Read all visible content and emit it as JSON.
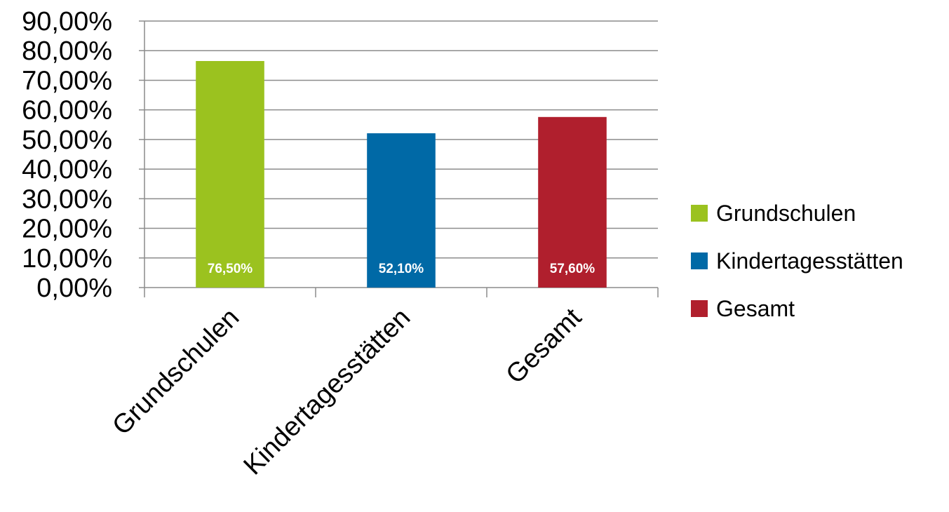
{
  "chart_data": {
    "type": "bar",
    "title": "",
    "xlabel": "",
    "ylabel": "",
    "categories": [
      "Grundschulen",
      "Kindertagesstätten",
      "Gesamt"
    ],
    "values": [
      76.5,
      52.1,
      57.6
    ],
    "data_labels": [
      "76,50%",
      "52,10%",
      "57,60%"
    ],
    "colors": [
      "#9BC21F",
      "#0069A6",
      "#B01F2D"
    ],
    "ylim": [
      0,
      90
    ],
    "ytick_step": 10,
    "ytick_labels": [
      "0,00%",
      "10,00%",
      "20,00%",
      "30,00%",
      "40,00%",
      "50,00%",
      "60,00%",
      "70,00%",
      "80,00%",
      "90,00%"
    ],
    "grid": true,
    "legend": {
      "position": "right",
      "entries": [
        "Grundschulen",
        "Kindertagesstätten",
        "Gesamt"
      ]
    }
  }
}
